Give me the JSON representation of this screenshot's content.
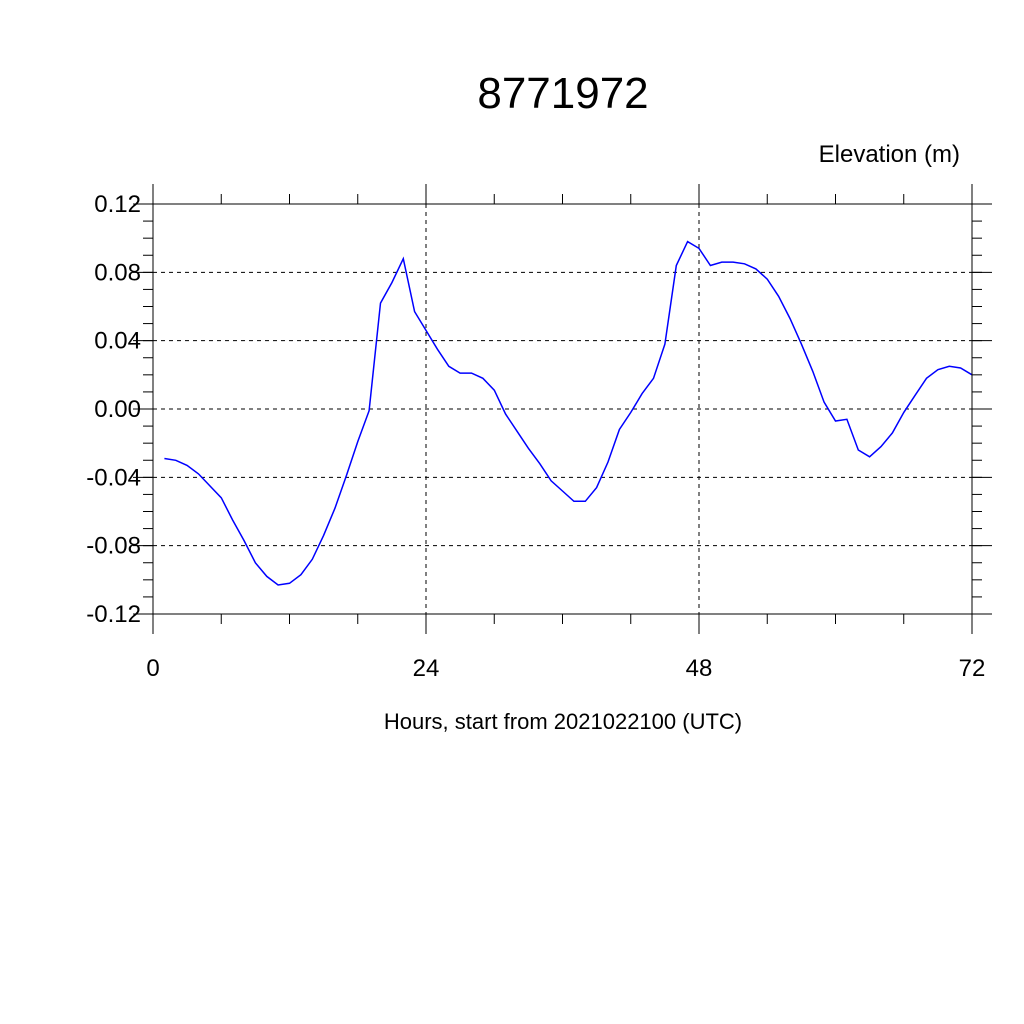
{
  "chart_data": {
    "type": "line",
    "title": "8771972",
    "ylabel": "Elevation (m)",
    "xlabel": "Hours, start from 2021022100 (UTC)",
    "xlim": [
      0,
      72
    ],
    "ylim": [
      -0.12,
      0.12
    ],
    "x_ticks": [
      0,
      24,
      48,
      72
    ],
    "x_tick_labels": [
      "0",
      "24",
      "48",
      "72"
    ],
    "y_ticks": [
      -0.12,
      -0.08,
      -0.04,
      0.0,
      0.04,
      0.08,
      0.12
    ],
    "y_tick_labels": [
      "-0.12",
      "-0.08",
      "-0.04",
      "0.00",
      "0.04",
      "0.08",
      "0.12"
    ],
    "grid": true,
    "series": [
      {
        "color": "#0000ff",
        "x": [
          1,
          2,
          3,
          4,
          5,
          6,
          7,
          8,
          9,
          10,
          11,
          12,
          13,
          14,
          15,
          16,
          17,
          18,
          19,
          20,
          21,
          22,
          23,
          24,
          25,
          26,
          27,
          28,
          29,
          30,
          31,
          32,
          33,
          34,
          35,
          36,
          37,
          38,
          39,
          40,
          41,
          42,
          43,
          44,
          45,
          46,
          47,
          48,
          49,
          50,
          51,
          52,
          53,
          54,
          55,
          56,
          57,
          58,
          59,
          60,
          61,
          62,
          63,
          64,
          65,
          66,
          67,
          68,
          69,
          70,
          71,
          72
        ],
        "y": [
          -0.029,
          -0.03,
          -0.033,
          -0.038,
          -0.045,
          -0.052,
          -0.065,
          -0.077,
          -0.09,
          -0.098,
          -0.103,
          -0.102,
          -0.097,
          -0.088,
          -0.074,
          -0.058,
          -0.039,
          -0.019,
          -0.001,
          0.062,
          0.074,
          0.088,
          0.057,
          0.046,
          0.035,
          0.025,
          0.021,
          0.021,
          0.018,
          0.011,
          -0.003,
          -0.013,
          -0.023,
          -0.032,
          -0.042,
          -0.048,
          -0.054,
          -0.054,
          -0.046,
          -0.031,
          -0.012,
          -0.002,
          0.009,
          0.018,
          0.038,
          0.084,
          0.098,
          0.094,
          0.084,
          0.086,
          0.086,
          0.085,
          0.082,
          0.076,
          0.066,
          0.053,
          0.038,
          0.022,
          0.004,
          -0.007,
          -0.006,
          -0.024,
          -0.028,
          -0.022,
          -0.014,
          -0.002,
          0.008,
          0.018,
          0.023,
          0.025,
          0.024,
          0.02
        ]
      }
    ]
  }
}
